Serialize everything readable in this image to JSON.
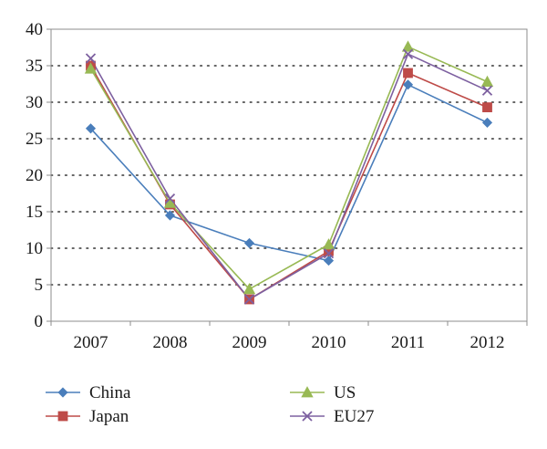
{
  "chart_data": {
    "type": "line",
    "title": "",
    "xlabel": "",
    "ylabel": "",
    "categories": [
      "2007",
      "2008",
      "2009",
      "2010",
      "2011",
      "2012"
    ],
    "ylim": [
      0,
      40
    ],
    "yticks": [
      0,
      5,
      10,
      15,
      20,
      25,
      30,
      35,
      40
    ],
    "grid": "horizontal dotted",
    "legend_position": "bottom",
    "series": [
      {
        "name": "China",
        "color": "#4a7ebb",
        "marker": "diamond",
        "values": [
          26.4,
          14.5,
          10.7,
          8.3,
          32.4,
          27.2
        ]
      },
      {
        "name": "Japan",
        "color": "#be4b48",
        "marker": "square",
        "values": [
          35.0,
          16.0,
          3.0,
          9.6,
          34.0,
          29.3
        ]
      },
      {
        "name": "US",
        "color": "#98b954",
        "marker": "triangle",
        "values": [
          34.6,
          16.2,
          4.4,
          10.5,
          37.6,
          32.8
        ]
      },
      {
        "name": "EU27",
        "color": "#7d60a0",
        "marker": "x",
        "values": [
          36.0,
          16.8,
          3.0,
          9.3,
          36.6,
          31.6
        ]
      }
    ]
  }
}
